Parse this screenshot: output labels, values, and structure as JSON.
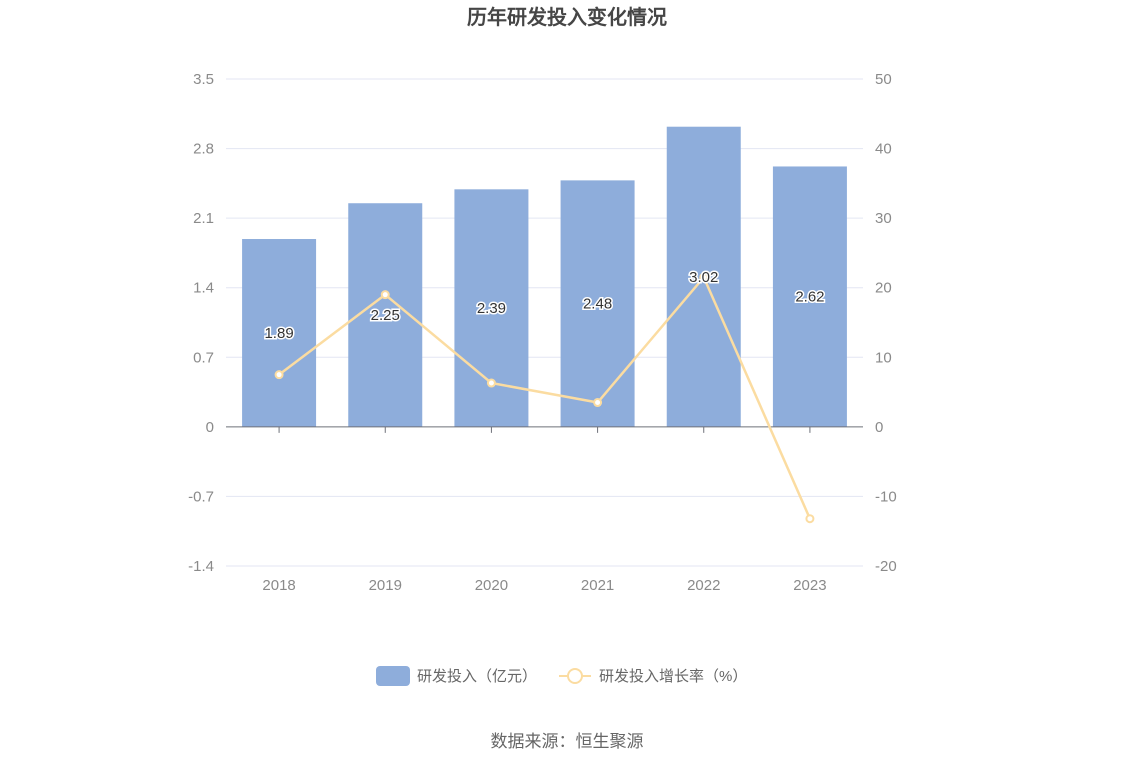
{
  "chart_data": {
    "type": "bar",
    "title": "历年研发投入变化情况",
    "categories": [
      "2018",
      "2019",
      "2020",
      "2021",
      "2022",
      "2023"
    ],
    "series": [
      {
        "name": "研发投入（亿元）",
        "type": "bar",
        "axis": "left",
        "color": "#8eaddb",
        "values": [
          1.89,
          2.25,
          2.39,
          2.48,
          3.02,
          2.62
        ],
        "labels": [
          "1.89",
          "2.25",
          "2.39",
          "2.48",
          "3.02",
          "2.62"
        ]
      },
      {
        "name": "研发投入增长率（%）",
        "type": "line",
        "axis": "right",
        "color": "#fbdca1",
        "values": [
          7.5,
          19,
          6.3,
          3.5,
          21.5,
          -13.2
        ]
      }
    ],
    "y_left": {
      "ylim": [
        -1.4,
        3.5
      ],
      "ticks": [
        "3.5",
        "2.8",
        "2.1",
        "1.4",
        "0.7",
        "0",
        "-0.7",
        "-1.4"
      ]
    },
    "y_right": {
      "ylim": [
        -20,
        50
      ],
      "ticks": [
        "50",
        "40",
        "30",
        "20",
        "10",
        "0",
        "-10",
        "-20"
      ]
    },
    "grid": true,
    "legend_position": "bottom-center"
  },
  "source": "数据来源：恒生聚源"
}
